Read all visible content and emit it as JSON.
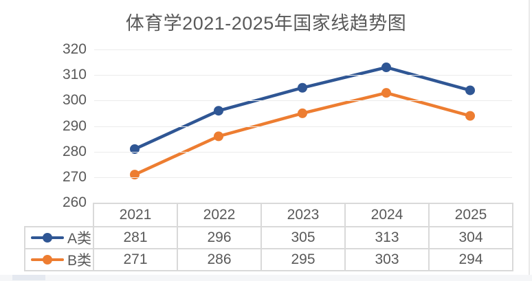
{
  "chart_data": {
    "type": "line",
    "title": "体育学2021-2025年国家线趋势图",
    "categories": [
      "2021",
      "2022",
      "2023",
      "2024",
      "2025"
    ],
    "series": [
      {
        "name": "A类",
        "values": [
          281,
          296,
          305,
          313,
          304
        ],
        "color": "#2F5694"
      },
      {
        "name": "B类",
        "values": [
          271,
          286,
          295,
          303,
          294
        ],
        "color": "#ED7D31"
      }
    ],
    "ylim": [
      260,
      320
    ],
    "yticks": [
      320,
      310,
      300,
      290,
      280,
      270,
      260
    ],
    "xlabel": "",
    "ylabel": "",
    "grid": "horizontal",
    "legend_position": "data-table-left",
    "data_table_shown": true,
    "marker": "circle"
  },
  "style": {
    "title_color": "#595959",
    "text_color": "#595959",
    "gridline_color": "#ebebeb",
    "table_border_color": "#d9d9d9",
    "background": "#ffffff"
  }
}
